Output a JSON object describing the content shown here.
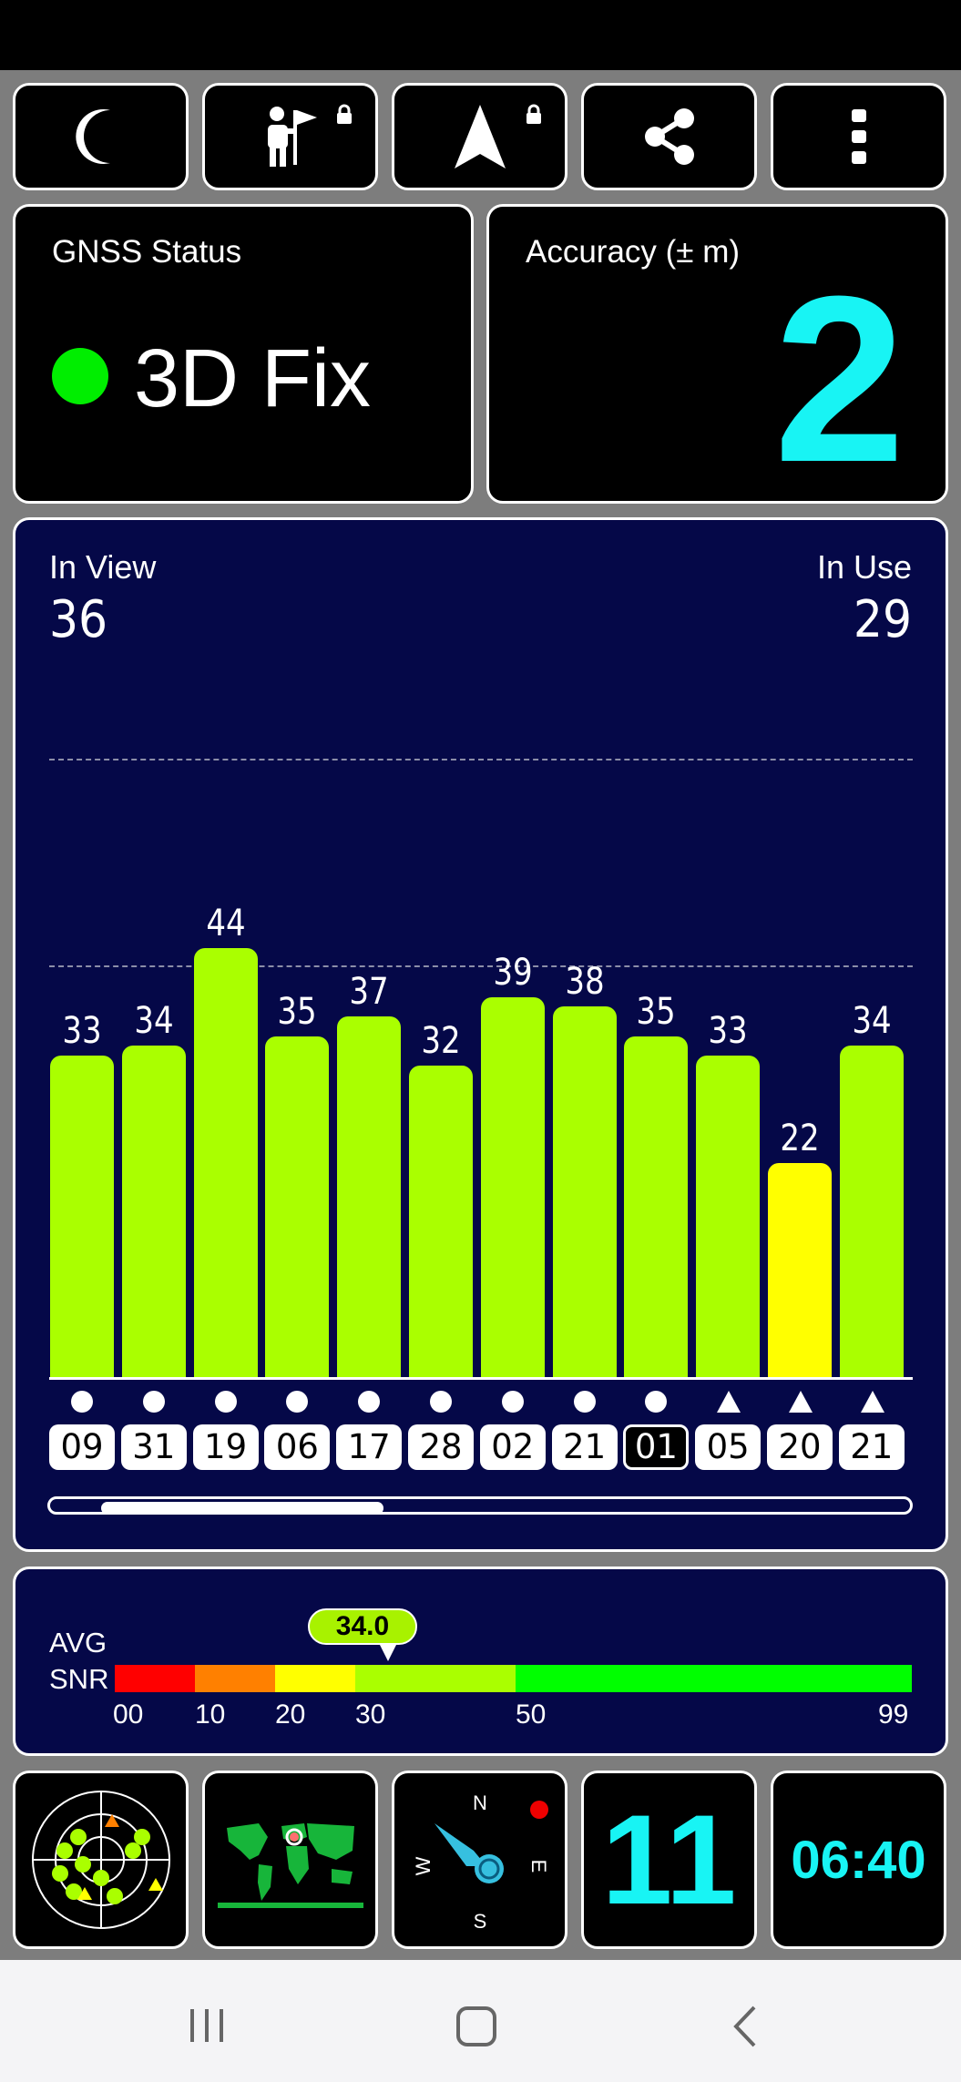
{
  "toolbar": {
    "buttons": [
      {
        "icon": "moon-icon",
        "locked": false
      },
      {
        "icon": "person-flag-icon",
        "locked": true
      },
      {
        "icon": "navigation-arrow-icon",
        "locked": true
      },
      {
        "icon": "share-icon",
        "locked": false
      },
      {
        "icon": "more-vert-icon",
        "locked": false
      }
    ]
  },
  "gnss": {
    "title": "GNSS Status",
    "value": "3D Fix",
    "indicator_color": "#00ee00"
  },
  "accuracy": {
    "title": "Accuracy (± m)",
    "value": "2"
  },
  "satellites": {
    "in_view_label": "In View",
    "in_view": "36",
    "in_use_label": "In Use",
    "in_use": "29"
  },
  "chart_data": {
    "type": "bar",
    "categories": [
      "09",
      "31",
      "19",
      "06",
      "17",
      "28",
      "02",
      "21",
      "01",
      "05",
      "20",
      "21"
    ],
    "values": [
      33,
      34,
      44,
      35,
      37,
      32,
      39,
      38,
      35,
      33,
      22,
      34
    ],
    "markers": [
      "circle",
      "circle",
      "circle",
      "circle",
      "circle",
      "circle",
      "circle",
      "circle",
      "circle",
      "triangle",
      "triangle",
      "triangle"
    ],
    "outlined": [
      false,
      false,
      false,
      false,
      false,
      false,
      false,
      false,
      true,
      false,
      false,
      false
    ],
    "colors": [
      "#aaff00",
      "#aaff00",
      "#aaff00",
      "#aaff00",
      "#aaff00",
      "#aaff00",
      "#aaff00",
      "#aaff00",
      "#aaff00",
      "#aaff00",
      "#ffff00",
      "#aaff00"
    ],
    "ylim": [
      0,
      60
    ]
  },
  "snr": {
    "avg_label": "AVG",
    "snr_label": "SNR",
    "avg_value": "34.0",
    "ticks": [
      "00",
      "10",
      "20",
      "30",
      "50",
      "99"
    ]
  },
  "bottom": {
    "count": "11",
    "time": "06:40",
    "compass": {
      "n": "N",
      "e": "E",
      "s": "S",
      "w": "W"
    }
  }
}
